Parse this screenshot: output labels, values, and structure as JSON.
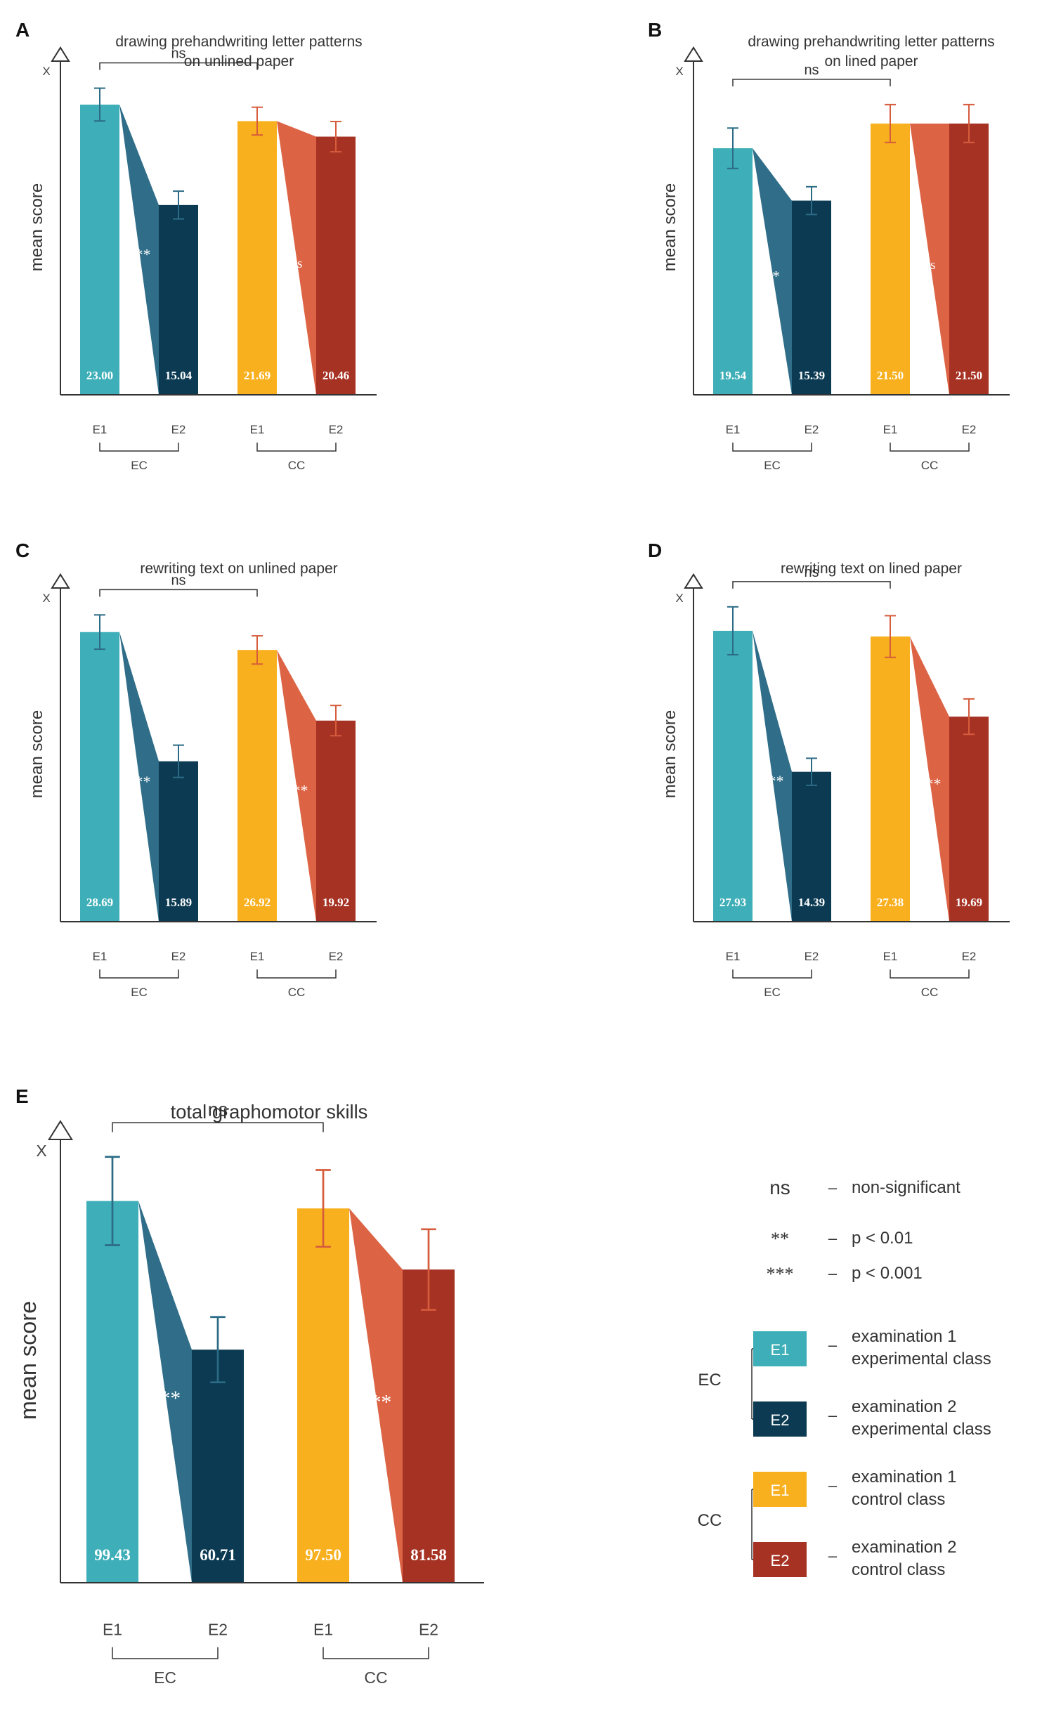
{
  "colors": {
    "ec_e1": "#3eafb8",
    "ec_e2": "#0b3a52",
    "ec_link": "#2f6d88",
    "ec_err": "#2c6b86",
    "cc_e1": "#f8b01e",
    "cc_e2": "#a63224",
    "cc_link": "#dc6445",
    "cc_err": "#d65c3c",
    "axis": "#333333",
    "label_text": "#ffffff"
  },
  "common": {
    "ylabel": "mean  score",
    "ymark": "X",
    "exam_labels": [
      "E1",
      "E2"
    ],
    "class_labels": [
      "EC",
      "CC"
    ],
    "sig_between": "ns"
  },
  "chart_data": [
    {
      "panel": "A",
      "type": "bar",
      "title": [
        "drawing  prehandwriting  letter  patterns",
        "on  unlined  paper"
      ],
      "ylim": [
        0,
        26
      ],
      "categories": [
        "EC E1",
        "EC E2",
        "CC E1",
        "CC E2"
      ],
      "values": [
        23.0,
        15.04,
        21.69,
        20.46
      ],
      "value_labels": [
        "23.00",
        "15.04",
        "21.69",
        "20.46"
      ],
      "errors": [
        1.3,
        1.1,
        1.1,
        1.2
      ],
      "sig_within": [
        "***",
        "ns"
      ],
      "sig_between": "ns"
    },
    {
      "panel": "B",
      "type": "bar",
      "title": [
        "drawing  prehandwriting  letter  patterns",
        "on  lined  paper"
      ],
      "ylim": [
        0,
        26
      ],
      "categories": [
        "EC E1",
        "EC E2",
        "CC E1",
        "CC E2"
      ],
      "values": [
        19.54,
        15.39,
        21.5,
        21.5
      ],
      "value_labels": [
        "19.54",
        "15.39",
        "21.50",
        "21.50"
      ],
      "errors": [
        1.6,
        1.1,
        1.5,
        1.5
      ],
      "sig_within": [
        "**",
        "ns"
      ],
      "sig_between": "ns"
    },
    {
      "panel": "C",
      "type": "bar",
      "title": [
        "rewriting  text  on  unlined  paper"
      ],
      "ylim": [
        0,
        32.5
      ],
      "categories": [
        "EC E1",
        "EC E2",
        "CC E1",
        "CC E2"
      ],
      "values": [
        28.69,
        15.89,
        26.92,
        19.92
      ],
      "value_labels": [
        "28.69",
        "15.89",
        "26.92",
        "19.92"
      ],
      "errors": [
        1.7,
        1.6,
        1.4,
        1.5
      ],
      "sig_within": [
        "***",
        "***"
      ],
      "sig_between": "ns"
    },
    {
      "panel": "D",
      "type": "bar",
      "title": [
        "rewriting  text  on  lined  paper"
      ],
      "ylim": [
        0,
        31.5
      ],
      "categories": [
        "EC E1",
        "EC E2",
        "CC E1",
        "CC E2"
      ],
      "values": [
        27.93,
        14.39,
        27.38,
        19.69
      ],
      "value_labels": [
        "27.93",
        "14.39",
        "27.38",
        "19.69"
      ],
      "errors": [
        2.3,
        1.3,
        2.0,
        1.7
      ],
      "sig_within": [
        "***",
        "***"
      ],
      "sig_between": "ns"
    },
    {
      "panel": "E",
      "type": "bar",
      "title": [
        "total  graphomotor  skills"
      ],
      "ylim": [
        0,
        114
      ],
      "categories": [
        "EC E1",
        "EC E2",
        "CC E1",
        "CC E2"
      ],
      "values": [
        99.43,
        60.71,
        97.5,
        81.58
      ],
      "value_labels": [
        "99.43",
        "60.71",
        "97.50",
        "81.58"
      ],
      "errors": [
        11.5,
        8.5,
        10.0,
        10.5
      ],
      "sig_within": [
        "***",
        "***"
      ],
      "sig_between": "ns"
    }
  ],
  "legend": {
    "sig": [
      {
        "symbol": "ns",
        "dash": "–",
        "text": "non-significant"
      },
      {
        "symbol": "**",
        "dash": "–",
        "text": "p  <  0.01"
      },
      {
        "symbol": "***",
        "dash": "–",
        "text": "p  <  0.001"
      }
    ],
    "groups": [
      {
        "label": "EC",
        "items": [
          {
            "box": "E1",
            "color_key": "ec_e1",
            "dash": "–",
            "lines": [
              "examination  1",
              "experimental  class"
            ]
          },
          {
            "box": "E2",
            "color_key": "ec_e2",
            "dash": "–",
            "lines": [
              "examination  2",
              "experimental  class"
            ]
          }
        ]
      },
      {
        "label": "CC",
        "items": [
          {
            "box": "E1",
            "color_key": "cc_e1",
            "dash": "–",
            "lines": [
              "examination  1",
              "control  class"
            ]
          },
          {
            "box": "E2",
            "color_key": "cc_e2",
            "dash": "–",
            "lines": [
              "examination  2",
              "control  class"
            ]
          }
        ]
      }
    ]
  }
}
